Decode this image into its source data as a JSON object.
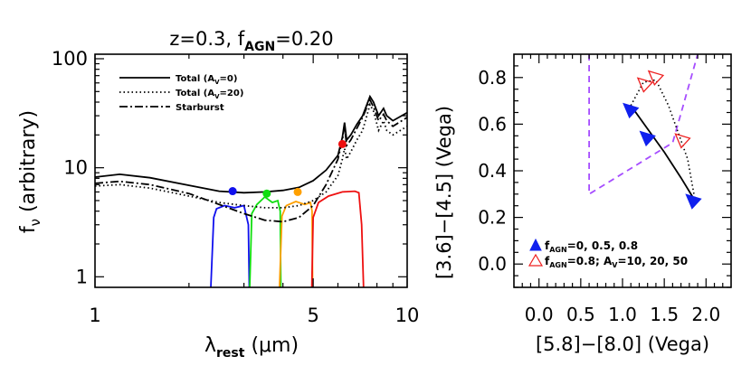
{
  "chart_data": [
    {
      "type": "line",
      "title": "z=0.3,  f",
      "title_sub": "AGN",
      "title_tail": "=0.20",
      "xlabel": "λ",
      "xlabel_sub": "rest",
      "xlabel_tail": "(μm)",
      "ylabel": "f",
      "ylabel_sub": "ν",
      "ylabel_tail": "(arbitrary)",
      "xscale": "log",
      "yscale": "log",
      "xlim": [
        1,
        10
      ],
      "ylim": [
        0.8,
        110
      ],
      "x_ticklabels": [
        {
          "value": 1,
          "label": "1"
        },
        {
          "value": 5,
          "label": "5"
        },
        {
          "value": 10,
          "label": "10"
        }
      ],
      "y_ticklabels": [
        {
          "value": 1,
          "label": "1"
        },
        {
          "value": 10,
          "label": "10"
        },
        {
          "value": 100,
          "label": "100"
        }
      ],
      "legend_position": "top-left",
      "series": [
        {
          "name": "Total (A",
          "name_sub": "V",
          "name_tail": "=0)",
          "style": "solid",
          "color": "#000000",
          "x": [
            1.0,
            1.2,
            1.5,
            2.0,
            2.5,
            3.0,
            3.5,
            4.0,
            4.5,
            5.0,
            5.5,
            6.0,
            6.2,
            6.3,
            6.4,
            6.6,
            6.9,
            7.2,
            7.6,
            7.8,
            8.1,
            8.4,
            8.6,
            9.0,
            10.0
          ],
          "y": [
            8.2,
            8.7,
            8.1,
            6.9,
            6.1,
            5.9,
            6.0,
            6.2,
            6.6,
            7.6,
            9.5,
            13,
            19,
            26,
            18,
            20,
            25,
            30,
            45,
            40,
            30,
            35,
            30,
            27,
            32
          ]
        },
        {
          "name": "Total (A",
          "name_sub": "V",
          "name_tail": "=20)",
          "style": "dotted",
          "color": "#000000",
          "x": [
            1.0,
            1.2,
            1.5,
            2.0,
            2.5,
            3.0,
            3.5,
            4.0,
            4.5,
            5.0,
            5.5,
            6.0,
            6.2,
            6.3,
            6.4,
            6.6,
            6.9,
            7.2,
            7.6,
            7.8,
            8.1,
            8.4,
            8.6,
            9.0,
            10.0
          ],
          "y": [
            6.8,
            7.0,
            6.5,
            5.5,
            4.8,
            4.5,
            4.3,
            4.3,
            4.5,
            5.0,
            6.0,
            8.5,
            12,
            15,
            12,
            14,
            18,
            22,
            38,
            33,
            22,
            27,
            22,
            20,
            24
          ]
        },
        {
          "name": "Starburst",
          "style": "dash-dot",
          "color": "#000000",
          "x": [
            1.0,
            1.2,
            1.5,
            2.0,
            2.5,
            3.0,
            3.5,
            4.0,
            4.5,
            5.0,
            5.5,
            6.0,
            6.2,
            6.3,
            6.4,
            6.6,
            6.9,
            7.2,
            7.6,
            7.8,
            8.1,
            8.4,
            8.6,
            9.0,
            10.0
          ],
          "y": [
            7.2,
            7.5,
            7.0,
            5.8,
            4.6,
            3.8,
            3.3,
            3.2,
            3.5,
            4.5,
            7.0,
            12,
            18,
            24,
            16,
            18,
            23,
            29,
            42,
            36,
            27,
            31,
            27,
            24,
            29
          ]
        }
      ],
      "markers": [
        {
          "x": 2.76,
          "y": 6.1,
          "color": "#1010ee"
        },
        {
          "x": 3.55,
          "y": 5.8,
          "color": "#10dd10"
        },
        {
          "x": 4.46,
          "y": 6.0,
          "color": "#ffa000"
        },
        {
          "x": 6.2,
          "y": 16.5,
          "color": "#ee1010"
        }
      ],
      "filters": [
        {
          "color": "#1010ee",
          "x": [
            2.35,
            2.4,
            2.45,
            2.6,
            2.8,
            3.0,
            3.1,
            3.12
          ],
          "y": [
            0.8,
            3.5,
            4.2,
            4.5,
            4.3,
            4.5,
            3.0,
            0.8
          ]
        },
        {
          "color": "#10dd10",
          "x": [
            3.13,
            3.18,
            3.3,
            3.5,
            3.7,
            3.85,
            3.92,
            3.94
          ],
          "y": [
            0.8,
            3.8,
            4.6,
            5.4,
            4.8,
            5.0,
            4.0,
            0.8
          ]
        },
        {
          "color": "#ffa000",
          "x": [
            3.9,
            3.97,
            4.1,
            4.4,
            4.7,
            4.9,
            4.96,
            4.98
          ],
          "y": [
            0.8,
            3.6,
            4.5,
            4.9,
            4.6,
            4.8,
            4.0,
            0.8
          ]
        },
        {
          "color": "#ee1010",
          "x": [
            4.95,
            5.0,
            5.2,
            5.6,
            6.2,
            6.8,
            7.0,
            7.15,
            7.25
          ],
          "y": [
            0.8,
            3.5,
            4.8,
            5.5,
            6.0,
            6.1,
            5.9,
            3.0,
            0.8
          ]
        }
      ]
    },
    {
      "type": "scatter",
      "xlabel": "[5.8]−[8.0] (Vega)",
      "ylabel": "[3.6]−[4.5] (Vega)",
      "xlim": [
        -0.3,
        2.3
      ],
      "ylim": [
        -0.1,
        0.9
      ],
      "x_ticklabels": [
        "0.0",
        "0.5",
        "1.0",
        "1.5",
        "2.0"
      ],
      "x_ticks": [
        0.0,
        0.5,
        1.0,
        1.5,
        2.0
      ],
      "y_ticklabels": [
        "0.0",
        "0.2",
        "0.4",
        "0.6",
        "0.8"
      ],
      "y_ticks": [
        0.0,
        0.2,
        0.4,
        0.6,
        0.8
      ],
      "legend_position": "bottom-left",
      "wedge": {
        "color": "#a64dff",
        "x": [
          0.6,
          0.6,
          1.6,
          1.9,
          1.9
        ],
        "y": [
          0.9,
          0.3,
          0.52,
          0.9,
          0.9
        ]
      },
      "agn_track": {
        "color": "#000000",
        "x": [
          1.1,
          1.3,
          1.5,
          1.7,
          1.87
        ],
        "y": [
          0.68,
          0.58,
          0.48,
          0.37,
          0.27
        ]
      },
      "extinction_track": {
        "color": "#000000",
        "x": [
          1.1,
          1.25,
          1.4,
          1.55,
          1.68,
          1.78,
          1.87
        ],
        "y": [
          0.68,
          0.78,
          0.79,
          0.68,
          0.55,
          0.45,
          0.27
        ]
      },
      "blue_points": {
        "color": "#1020ee",
        "x": [
          1.1,
          1.3,
          1.85
        ],
        "y": [
          0.66,
          0.54,
          0.27
        ]
      },
      "red_points": {
        "color": "#ee2020",
        "x": [
          1.27,
          1.4,
          1.72
        ],
        "y": [
          0.77,
          0.8,
          0.53
        ]
      },
      "legend": [
        {
          "label": "f",
          "label_sub": "AGN",
          "label_tail": "=0, 0.5, 0.8"
        },
        {
          "label": "f",
          "label_sub": "AGN",
          "label_tail": "=0.8; A",
          "label_sub2": "V",
          "label_tail2": "=10, 20, 50"
        }
      ]
    }
  ]
}
